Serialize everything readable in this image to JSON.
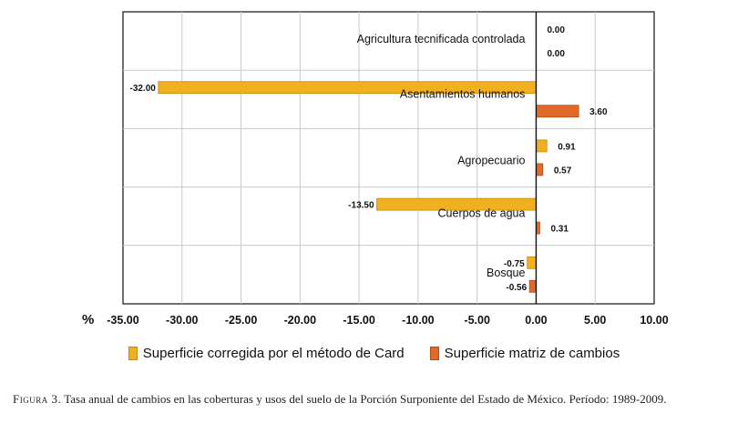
{
  "chart_data": {
    "type": "bar",
    "orientation": "horizontal",
    "title": "",
    "xlabel": "%",
    "xlim": [
      -35,
      10
    ],
    "xticks": [
      -35,
      -30,
      -25,
      -20,
      -15,
      -10,
      -5,
      0,
      5,
      10
    ],
    "xtick_labels": [
      "-35.00",
      "-30.00",
      "-25.00",
      "-20.00",
      "-15.00",
      "-10.00",
      "-5.00",
      "0.00",
      "5.00",
      "10.00"
    ],
    "categories": [
      "Agricultura tecnificada controlada",
      "Asentamientos humanos",
      "Agropecuario",
      "Cuerpos de agua",
      "Bosque"
    ],
    "series": [
      {
        "name": "Superficie corregida por el método de Card",
        "color": "#f0b020",
        "values": [
          0.0,
          -32.0,
          0.91,
          -13.5,
          -0.75
        ],
        "labels": [
          "0.00",
          "-32.00",
          "0.91",
          "-13.50",
          "-0.75"
        ]
      },
      {
        "name": "Superficie matriz de cambios",
        "color": "#e06a2a",
        "values": [
          0.0,
          3.6,
          0.57,
          0.31,
          -0.56
        ],
        "labels": [
          "0.00",
          "3.60",
          "0.57",
          "0.31",
          "-0.56"
        ]
      }
    ],
    "legend_position": "bottom",
    "grid": true
  },
  "caption": {
    "figure_number": "Figura 3.",
    "text": "Tasa anual de cambios en las coberturas y usos del suelo de la Porción Surponiente del Estado de México. Período: 1989-2009."
  }
}
